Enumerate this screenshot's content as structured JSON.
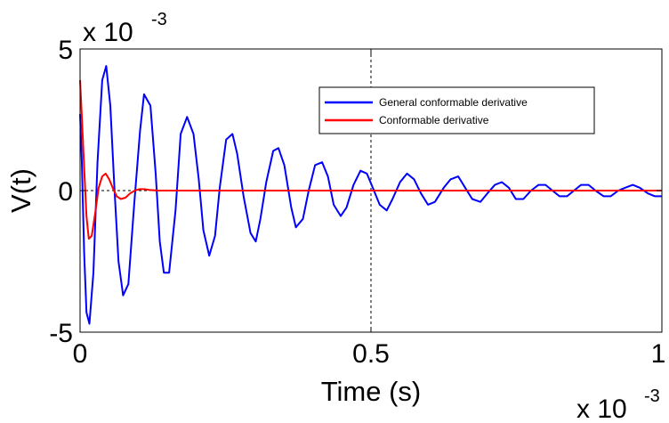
{
  "chart_data": {
    "type": "line",
    "xlabel": "Time (s)",
    "ylabel": "V(t)",
    "x_multiplier": "x 10",
    "x_multiplier_exp": "-3",
    "y_multiplier": "x 10",
    "y_multiplier_exp": "-3",
    "xlim": [
      0,
      1
    ],
    "ylim": [
      -5,
      5
    ],
    "xticks": [
      0,
      0.5,
      1
    ],
    "xtick_labels": [
      "0",
      "0.5",
      "1"
    ],
    "yticks": [
      -5,
      0,
      5
    ],
    "ytick_labels": [
      "-5",
      "0",
      "5"
    ],
    "grid": "dashed reference lines at x=0.5 and y=0",
    "legend_position": "top-right",
    "series": [
      {
        "name": "General conformable derivative",
        "color": "#0000ff",
        "x": [
          0,
          0.003,
          0.007,
          0.011,
          0.016,
          0.023,
          0.03,
          0.038,
          0.045,
          0.052,
          0.059,
          0.066,
          0.074,
          0.083,
          0.093,
          0.103,
          0.11,
          0.121,
          0.13,
          0.137,
          0.144,
          0.153,
          0.164,
          0.173,
          0.184,
          0.195,
          0.204,
          0.212,
          0.222,
          0.232,
          0.24,
          0.251,
          0.262,
          0.27,
          0.281,
          0.293,
          0.302,
          0.31,
          0.32,
          0.332,
          0.341,
          0.351,
          0.363,
          0.371,
          0.383,
          0.393,
          0.404,
          0.416,
          0.426,
          0.436,
          0.448,
          0.458,
          0.47,
          0.482,
          0.493,
          0.503,
          0.515,
          0.527,
          0.537,
          0.55,
          0.562,
          0.574,
          0.586,
          0.598,
          0.61,
          0.625,
          0.637,
          0.65,
          0.662,
          0.674,
          0.688,
          0.7,
          0.713,
          0.725,
          0.737,
          0.749,
          0.762,
          0.775,
          0.788,
          0.8,
          0.812,
          0.824,
          0.837,
          0.849,
          0.861,
          0.874,
          0.886,
          0.9,
          0.912,
          0.925,
          0.937,
          0.95,
          0.962,
          0.976,
          0.988,
          1.0
        ],
        "y": [
          2.7,
          1.0,
          -2.2,
          -4.3,
          -4.7,
          -2.9,
          1.0,
          3.9,
          4.4,
          3.0,
          0.1,
          -2.5,
          -3.7,
          -3.3,
          -0.5,
          2.1,
          3.4,
          3.0,
          0.6,
          -1.8,
          -2.9,
          -2.9,
          -0.7,
          2.0,
          2.6,
          2.0,
          0.4,
          -1.4,
          -2.3,
          -1.6,
          0.1,
          1.8,
          2.0,
          1.3,
          -0.2,
          -1.5,
          -1.8,
          -1.0,
          0.3,
          1.4,
          1.5,
          0.9,
          -0.6,
          -1.3,
          -1.0,
          0.0,
          0.9,
          1.0,
          0.5,
          -0.5,
          -0.9,
          -0.6,
          0.2,
          0.7,
          0.6,
          0.1,
          -0.5,
          -0.7,
          -0.3,
          0.3,
          0.6,
          0.4,
          -0.1,
          -0.5,
          -0.4,
          0.1,
          0.4,
          0.5,
          0.1,
          -0.3,
          -0.4,
          -0.1,
          0.2,
          0.3,
          0.1,
          -0.3,
          -0.3,
          -0.0,
          0.2,
          0.2,
          0.0,
          -0.2,
          -0.2,
          0.0,
          0.2,
          0.2,
          0.0,
          -0.2,
          -0.2,
          -0.0,
          0.1,
          0.2,
          0.1,
          -0.1,
          -0.2,
          -0.2
        ]
      },
      {
        "name": "Conformable derivative",
        "color": "#ff0000",
        "x": [
          0,
          0.003,
          0.007,
          0.011,
          0.015,
          0.02,
          0.026,
          0.032,
          0.038,
          0.044,
          0.05,
          0.056,
          0.063,
          0.07,
          0.078,
          0.086,
          0.094,
          0.102,
          0.11,
          0.12,
          0.135,
          0.15,
          0.2,
          0.3,
          0.5,
          0.7,
          0.9,
          1.0
        ],
        "y": [
          3.9,
          2.6,
          0.8,
          -0.9,
          -1.7,
          -1.6,
          -0.8,
          0.1,
          0.5,
          0.6,
          0.4,
          0.1,
          -0.2,
          -0.3,
          -0.25,
          -0.1,
          0.0,
          0.05,
          0.05,
          0.02,
          0.0,
          0.0,
          0.0,
          0.0,
          0.0,
          0.0,
          0.0,
          0.0
        ]
      }
    ]
  }
}
